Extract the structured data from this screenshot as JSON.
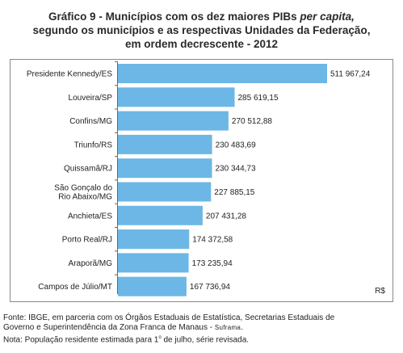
{
  "title": {
    "line1_prefix": "Gráfico 9 - Municípios com os dez maiores PIBs",
    "line1_italic": "per capita,",
    "line2": "segundo os municípios e as respectivas Unidades da Federação,",
    "line3": "em ordem decrescente - 2012"
  },
  "unit_label": "R$",
  "bar_color": "#6cb7e6",
  "footnotes": {
    "source_1": "Fonte: IBGE, em parceria com os Órgãos Estaduais de Estatística, Secretarias Estaduais de",
    "source_2": "Governo e Superintendência da Zona Franca de Manaus -",
    "source_2_sc": "Suframa",
    "source_2_end": ".",
    "note_a": "Nota: População residente estimada para 1",
    "note_sup": "o",
    "note_b": " de julho, série revisada."
  },
  "chart_data": {
    "type": "bar",
    "orientation": "horizontal",
    "categories": [
      "Presidente Kennedy/ES",
      "Louveira/SP",
      "Confins/MG",
      "Triunfo/RS",
      "Quissamã/RJ",
      "São Gonçalo do Rio Abaixo/MG",
      "Anchieta/ES",
      "Porto Real/RJ",
      "Araporã/MG",
      "Campos de Júlio/MT"
    ],
    "category_lines": [
      [
        "Presidente Kennedy/ES"
      ],
      [
        "Louveira/SP"
      ],
      [
        "Confins/MG"
      ],
      [
        "Triunfo/RS"
      ],
      [
        "Quissamã/RJ"
      ],
      [
        "São Gonçalo do",
        "Rio Abaixo/MG"
      ],
      [
        "Anchieta/ES"
      ],
      [
        "Porto Real/RJ"
      ],
      [
        "Araporã/MG"
      ],
      [
        "Campos de Júlio/MT"
      ]
    ],
    "values": [
      511967.24,
      285619.15,
      270512.88,
      230483.69,
      230344.73,
      227885.15,
      207431.28,
      174372.58,
      173235.94,
      167736.94
    ],
    "value_labels": [
      "511 967,24",
      "285 619,15",
      "270 512,88",
      "230 483,69",
      "230 344,73",
      "227 885,15",
      "207 431,28",
      "174 372,58",
      "173 235,94",
      "167 736,94"
    ],
    "title": "Gráfico 9 - Municípios com os dez maiores PIBs per capita, segundo os municípios e as respectivas Unidades da Federação, em ordem decrescente - 2012",
    "xlabel": "R$",
    "ylabel": "",
    "xlim": [
      0,
      511967.24
    ],
    "grid": false,
    "legend": "none"
  }
}
